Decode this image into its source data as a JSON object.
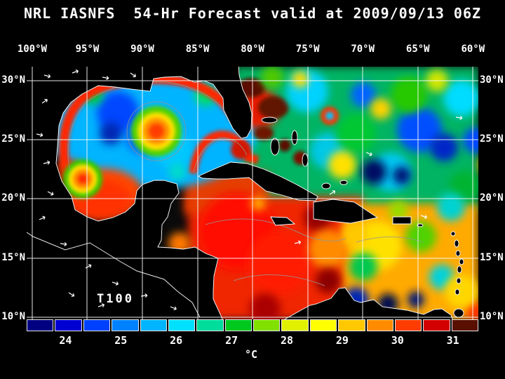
{
  "title": "NRL IASNFS  54-Hr Forecast valid at 2009/09/13 06Z",
  "map": {
    "annotation": "T100",
    "lon_ticks": [
      "100°W",
      "95°W",
      "90°W",
      "85°W",
      "80°W",
      "75°W",
      "70°W",
      "65°W",
      "60°W"
    ],
    "lat_ticks": [
      "30°N",
      "25°N",
      "20°N",
      "15°N",
      "10°N"
    ]
  },
  "colorbar": {
    "unit_label": "°C",
    "tick_labels": [
      "24",
      "25",
      "26",
      "27",
      "28",
      "29",
      "30",
      "31"
    ],
    "segment_colors": [
      "#000082",
      "#0000d2",
      "#0041ff",
      "#0082ff",
      "#00b4ff",
      "#00e0ff",
      "#00dc9b",
      "#00c81e",
      "#82e000",
      "#e1f000",
      "#ffff00",
      "#ffc800",
      "#ff8c00",
      "#ff3c00",
      "#d20000",
      "#5a1000"
    ]
  },
  "colors": {
    "background": "#000000",
    "text": "#ffffff",
    "grid": "#ffffff",
    "land": "#000000",
    "coastline": "#ffffff"
  }
}
